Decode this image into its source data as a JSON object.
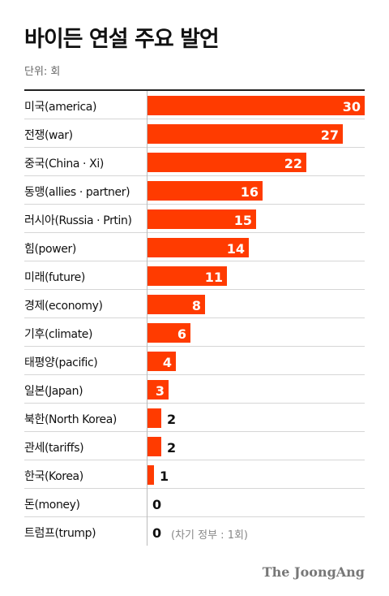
{
  "header": {
    "title": "바이든 연설 주요 발언",
    "unit": "단위: 회"
  },
  "colors": {
    "bar": "#ff3b00"
  },
  "brand": "The JoongAng",
  "chart_data": {
    "type": "bar",
    "orientation": "horizontal",
    "title": "바이든 연설 주요 발언",
    "unit": "단위: 회",
    "xlim": [
      0,
      30
    ],
    "grid": false,
    "categories": [
      "미국(america)",
      "전쟁(war)",
      "중국(China · Xi)",
      "동맹(allies · partner)",
      "러시아(Russia · Prtin)",
      "힘(power)",
      "미래(future)",
      "경제(economy)",
      "기후(climate)",
      "태평양(pacific)",
      "일본(Japan)",
      "북한(North Korea)",
      "관세(tariffs)",
      "한국(Korea)",
      "돈(money)",
      "트럼프(trump)"
    ],
    "values": [
      30,
      27,
      22,
      16,
      15,
      14,
      11,
      8,
      6,
      4,
      3,
      2,
      2,
      1,
      0,
      0
    ],
    "annotations": [
      {
        "category": "트럼프(trump)",
        "text": "(차기 정부 : 1회)"
      }
    ]
  }
}
